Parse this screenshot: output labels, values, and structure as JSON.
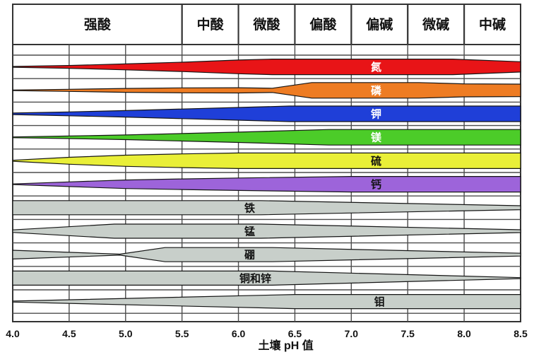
{
  "page": {
    "background": "#ffffff",
    "border_color": "#333333",
    "grid_color": "#4d4d4d"
  },
  "header": {
    "cells": [
      {
        "label": "强酸",
        "ph_from": 4.0,
        "ph_to": 5.5
      },
      {
        "label": "中酸",
        "ph_from": 5.5,
        "ph_to": 6.0
      },
      {
        "label": "微酸",
        "ph_from": 6.0,
        "ph_to": 6.5
      },
      {
        "label": "偏酸",
        "ph_from": 6.5,
        "ph_to": 7.0
      },
      {
        "label": "偏碱",
        "ph_from": 7.0,
        "ph_to": 7.5
      },
      {
        "label": "微碱",
        "ph_from": 7.5,
        "ph_to": 8.0
      },
      {
        "label": "中碱",
        "ph_from": 8.0,
        "ph_to": 8.5
      }
    ]
  },
  "chart_data": {
    "type": "area",
    "title": "",
    "xlabel": "土壤 pH 值",
    "ylabel": "",
    "x_range": [
      4.0,
      8.5
    ],
    "x_ticks": [
      "4.0",
      "4.5",
      "5.0",
      "5.5",
      "6.0",
      "6.5",
      "7.0",
      "7.5",
      "8.0",
      "8.5"
    ],
    "grid": true,
    "legend": "labels-on-bands",
    "description": "Band thickness = relative nutrient availability vs soil pH; profile points are [pH, availability 0-1]",
    "series": [
      {
        "id": "nitrogen",
        "name": "氮",
        "color": "#e81417",
        "label_color": "#ffffff",
        "label_ph": 7.22,
        "profile": [
          [
            4.0,
            0.05
          ],
          [
            4.5,
            0.18
          ],
          [
            5.0,
            0.38
          ],
          [
            5.5,
            0.6
          ],
          [
            6.0,
            0.88
          ],
          [
            6.3,
            1
          ],
          [
            7.9,
            1
          ],
          [
            8.5,
            0.66
          ]
        ]
      },
      {
        "id": "phosphorus",
        "name": "磷",
        "color": "#ee7c23",
        "label_color": "#ffffff",
        "label_ph": 7.22,
        "profile": [
          [
            4.0,
            0.04
          ],
          [
            4.5,
            0.14
          ],
          [
            5.0,
            0.25
          ],
          [
            5.5,
            0.32
          ],
          [
            6.0,
            0.34
          ],
          [
            6.3,
            0.27
          ],
          [
            6.65,
            1
          ],
          [
            7.6,
            1
          ],
          [
            8.0,
            0.84
          ],
          [
            8.5,
            0.8
          ]
        ]
      },
      {
        "id": "potassium",
        "name": "钾",
        "color": "#1f3fd8",
        "label_color": "#ffffff",
        "label_ph": 7.22,
        "profile": [
          [
            4.0,
            0.1
          ],
          [
            4.5,
            0.25
          ],
          [
            5.0,
            0.42
          ],
          [
            5.5,
            0.62
          ],
          [
            6.0,
            0.82
          ],
          [
            6.45,
            1
          ],
          [
            8.5,
            1
          ]
        ]
      },
      {
        "id": "magnesium",
        "name": "镁",
        "color": "#4ccc29",
        "label_color": "#ffffff",
        "label_ph": 7.22,
        "profile": [
          [
            4.0,
            0.05
          ],
          [
            4.5,
            0.16
          ],
          [
            5.0,
            0.3
          ],
          [
            5.5,
            0.48
          ],
          [
            6.0,
            0.66
          ],
          [
            6.8,
            1
          ],
          [
            8.5,
            1
          ]
        ]
      },
      {
        "id": "sulfur",
        "name": "硫",
        "color": "#e9ef38",
        "label_color": "#111111",
        "label_ph": 7.22,
        "profile": [
          [
            4.0,
            0.06
          ],
          [
            4.5,
            0.45
          ],
          [
            5.0,
            0.72
          ],
          [
            5.5,
            0.88
          ],
          [
            6.0,
            1
          ],
          [
            8.5,
            1
          ]
        ]
      },
      {
        "id": "calcium",
        "name": "钙",
        "color": "#9d64da",
        "label_color": "#111111",
        "label_ph": 7.22,
        "profile": [
          [
            4.0,
            0.04
          ],
          [
            4.5,
            0.3
          ],
          [
            5.0,
            0.55
          ],
          [
            5.5,
            0.68
          ],
          [
            6.0,
            0.8
          ],
          [
            7.0,
            1
          ],
          [
            8.5,
            1
          ]
        ]
      },
      {
        "id": "iron",
        "name": "铁",
        "color": "#c8cfca",
        "label_color": "#111111",
        "label_ph": 6.1,
        "profile": [
          [
            4.0,
            1
          ],
          [
            6.2,
            1
          ],
          [
            8.5,
            0.28
          ]
        ]
      },
      {
        "id": "manganese",
        "name": "锰",
        "color": "#c8cfca",
        "label_color": "#111111",
        "label_ph": 6.1,
        "profile": [
          [
            4.0,
            0.18
          ],
          [
            4.9,
            1
          ],
          [
            6.2,
            1
          ],
          [
            8.5,
            0.2
          ]
        ]
      },
      {
        "id": "boron",
        "name": "硼",
        "color": "#c8cfca",
        "label_color": "#111111",
        "label_ph": 6.1,
        "profile": [
          [
            4.0,
            0.62
          ],
          [
            4.95,
            0.07
          ],
          [
            5.35,
            1
          ],
          [
            6.3,
            1
          ],
          [
            8.5,
            0.2
          ]
        ]
      },
      {
        "id": "copper-zinc",
        "name": "铜和锌",
        "color": "#c8cfca",
        "label_color": "#111111",
        "label_ph": 6.15,
        "profile": [
          [
            4.0,
            1
          ],
          [
            6.3,
            1
          ],
          [
            8.5,
            0.07
          ]
        ]
      },
      {
        "id": "molybdenum",
        "name": "钼",
        "color": "#c8cfca",
        "label_color": "#111111",
        "label_ph": 7.25,
        "profile": [
          [
            4.0,
            0.07
          ],
          [
            6.5,
            1
          ],
          [
            8.5,
            1
          ]
        ]
      }
    ]
  },
  "axis": {
    "title": "土壤 pH 值"
  }
}
